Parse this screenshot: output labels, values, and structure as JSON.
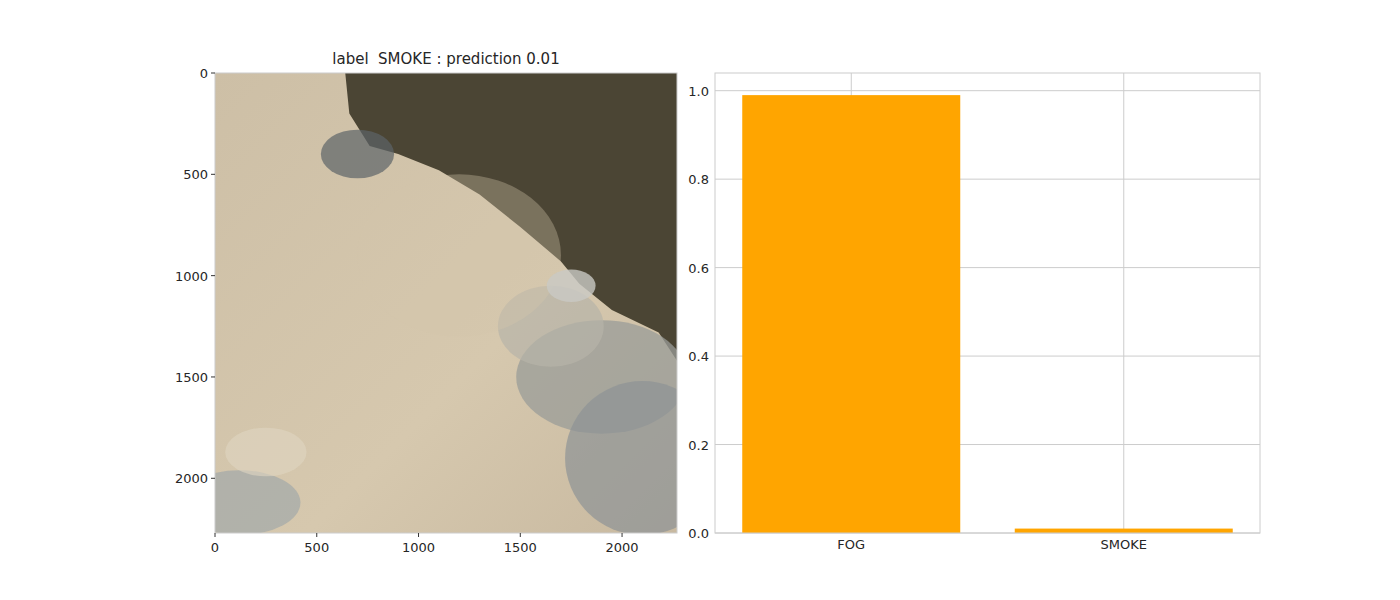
{
  "chart_data": [
    {
      "type": "image",
      "title": "label  SMOKE : prediction 0.01",
      "xlim": [
        0,
        2270
      ],
      "ylim": [
        2270,
        0
      ],
      "xticks": [
        0,
        500,
        1000,
        1500,
        2000
      ],
      "yticks": [
        0,
        500,
        1000,
        1500,
        2000
      ],
      "grid": false
    },
    {
      "type": "bar",
      "categories": [
        "FOG",
        "SMOKE"
      ],
      "values": [
        0.99,
        0.01
      ],
      "color": "#ffa500",
      "ylim": [
        0,
        1.04
      ],
      "yticks": [
        {
          "value": 0,
          "label": "0.0"
        },
        0.2,
        0.4,
        0.6,
        0.8,
        {
          "value": 1,
          "label": "1.0"
        }
      ],
      "grid": true
    }
  ]
}
